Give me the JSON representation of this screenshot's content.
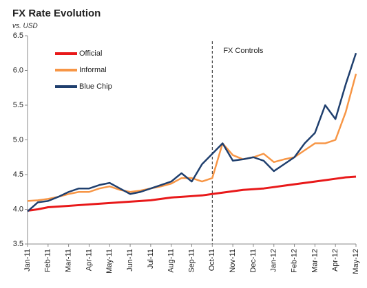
{
  "chart_data": {
    "type": "line",
    "title": "FX Rate Evolution",
    "subtitle": "vs. USD",
    "categories": [
      "Jan-11",
      null,
      "Feb-11",
      null,
      "Mar-11",
      null,
      "Apr-11",
      null,
      "May-11",
      null,
      "Jun-11",
      null,
      "Jul-11",
      null,
      "Aug-11",
      null,
      "Sep-11",
      null,
      "Oct-11",
      null,
      "Nov-11",
      null,
      "Dec-11",
      null,
      "Jan-12",
      null,
      "Feb-12",
      null,
      "Mar-12",
      null,
      "Apr-12",
      null,
      "May-12"
    ],
    "series": [
      {
        "name": "Official",
        "color": "#e8191a",
        "values": [
          3.98,
          4.0,
          4.03,
          4.04,
          4.05,
          4.06,
          4.07,
          4.08,
          4.09,
          4.1,
          4.11,
          4.12,
          4.13,
          4.15,
          4.17,
          4.18,
          4.19,
          4.2,
          4.22,
          4.24,
          4.26,
          4.28,
          4.29,
          4.3,
          4.32,
          4.34,
          4.36,
          4.38,
          4.4,
          4.42,
          4.44,
          4.46,
          4.47
        ]
      },
      {
        "name": "Informal",
        "color": "#f79646",
        "values": [
          4.12,
          4.13,
          4.15,
          4.18,
          4.22,
          4.25,
          4.25,
          4.3,
          4.33,
          4.28,
          4.25,
          4.27,
          4.3,
          4.33,
          4.37,
          4.45,
          4.45,
          4.4,
          4.45,
          4.95,
          4.78,
          4.72,
          4.75,
          4.8,
          4.68,
          4.72,
          4.75,
          4.85,
          4.95,
          4.95,
          5.0,
          5.4,
          5.95
        ]
      },
      {
        "name": "Blue Chip",
        "color": "#1f3f6e",
        "values": [
          3.97,
          4.1,
          4.12,
          4.18,
          4.25,
          4.3,
          4.3,
          4.35,
          4.38,
          4.3,
          4.22,
          4.25,
          4.3,
          4.35,
          4.4,
          4.52,
          4.4,
          4.65,
          4.8,
          4.95,
          4.7,
          4.72,
          4.75,
          4.7,
          4.55,
          4.65,
          4.75,
          4.95,
          5.1,
          5.5,
          5.3,
          5.8,
          6.25
        ]
      }
    ],
    "ylim": [
      3.5,
      6.5
    ],
    "yticks": [
      3.5,
      {
        "value": 4,
        "label": "4.0"
      },
      4.5,
      {
        "value": 5,
        "label": "5.0"
      },
      5.5,
      {
        "value": 6,
        "label": "6.0"
      },
      6.5
    ],
    "annotation": {
      "text": "FX Controls",
      "x": "Oct-11"
    },
    "legend": "upper-left",
    "grid": false
  }
}
